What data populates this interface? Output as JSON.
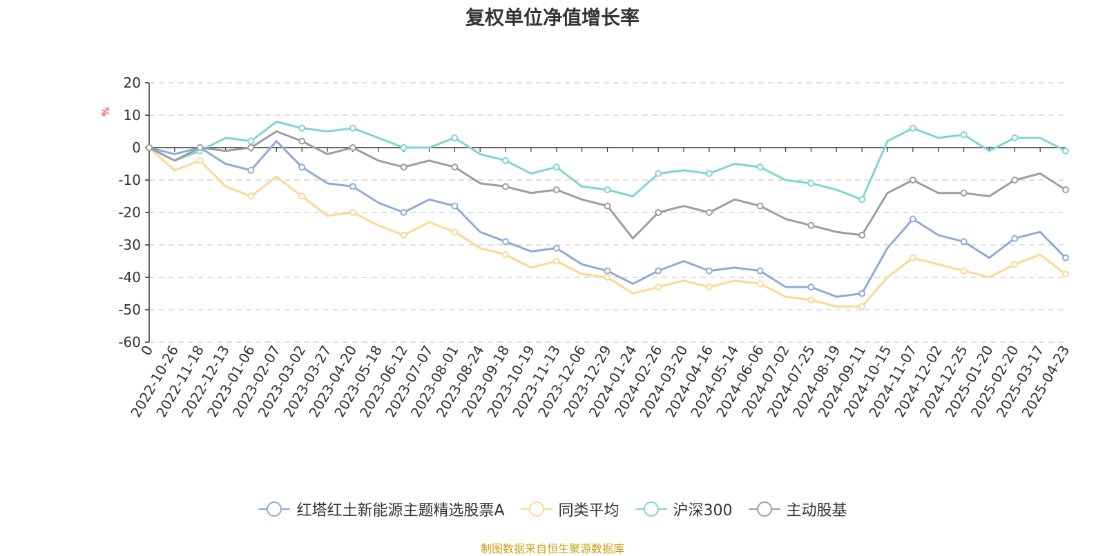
{
  "source_note": "制图数据来自恒生聚源数据库",
  "chart_data": {
    "type": "line",
    "title": "复权单位净值增长率",
    "ylabel": "%",
    "ylim": [
      -60,
      20
    ],
    "yticks": [
      20,
      10,
      0,
      -10,
      -20,
      -30,
      -40,
      -50,
      -60
    ],
    "grid": true,
    "legend_position": "bottom",
    "x": [
      "0",
      "2022-10-26",
      "2022-11-18",
      "2022-12-13",
      "2023-01-06",
      "2023-02-07",
      "2023-03-02",
      "2023-03-27",
      "2023-04-20",
      "2023-05-18",
      "2023-06-12",
      "2023-07-07",
      "2023-08-01",
      "2023-08-24",
      "2023-09-18",
      "2023-10-19",
      "2023-11-13",
      "2023-12-06",
      "2023-12-29",
      "2024-01-24",
      "2024-02-26",
      "2024-03-20",
      "2024-04-16",
      "2024-05-14",
      "2024-06-06",
      "2024-07-02",
      "2024-07-25",
      "2024-08-19",
      "2024-09-11",
      "2024-10-15",
      "2024-11-07",
      "2024-12-02",
      "2024-12-25",
      "2025-01-20",
      "2025-02-20",
      "2025-03-17",
      "2025-04-23"
    ],
    "series": [
      {
        "name": "红塔红土新能源主题精选股票A",
        "color": "#8eaad8",
        "values": [
          0,
          -2,
          0,
          -5,
          -7,
          2,
          -6,
          -11,
          -12,
          -17,
          -20,
          -16,
          -18,
          -26,
          -29,
          -32,
          -31,
          -36,
          -38,
          -42,
          -38,
          -35,
          -38,
          -37,
          -38,
          -43,
          -43,
          -46,
          -45,
          -31,
          -22,
          -27,
          -29,
          -34,
          -28,
          -26,
          -34
        ]
      },
      {
        "name": "同类平均",
        "color": "#fcd794",
        "values": [
          0,
          -7,
          -4,
          -12,
          -15,
          -9,
          -15,
          -21,
          -20,
          -24,
          -27,
          -23,
          -26,
          -31,
          -33,
          -37,
          -35,
          -39,
          -40,
          -45,
          -43,
          -41,
          -43,
          -41,
          -42,
          -46,
          -47,
          -49,
          -49,
          -40,
          -34,
          -36,
          -38,
          -40,
          -36,
          -33,
          -39
        ]
      },
      {
        "name": "沪深300",
        "color": "#7fd4d4",
        "values": [
          0,
          -4,
          -1,
          3,
          2,
          8,
          6,
          5,
          6,
          3,
          0,
          0,
          3,
          -2,
          -4,
          -8,
          -6,
          -12,
          -13,
          -15,
          -8,
          -7,
          -8,
          -5,
          -6,
          -10,
          -11,
          -13,
          -16,
          2,
          6,
          3,
          4,
          -1,
          3,
          3,
          -1
        ]
      },
      {
        "name": "主动股基",
        "color": "#9d9d9d",
        "values": [
          0,
          -4,
          0,
          -1,
          0,
          5,
          2,
          -2,
          0,
          -4,
          -6,
          -4,
          -6,
          -11,
          -12,
          -14,
          -13,
          -16,
          -18,
          -28,
          -20,
          -18,
          -20,
          -16,
          -18,
          -22,
          -24,
          -26,
          -27,
          -14,
          -10,
          -14,
          -14,
          -15,
          -10,
          -8,
          -13
        ]
      }
    ]
  }
}
